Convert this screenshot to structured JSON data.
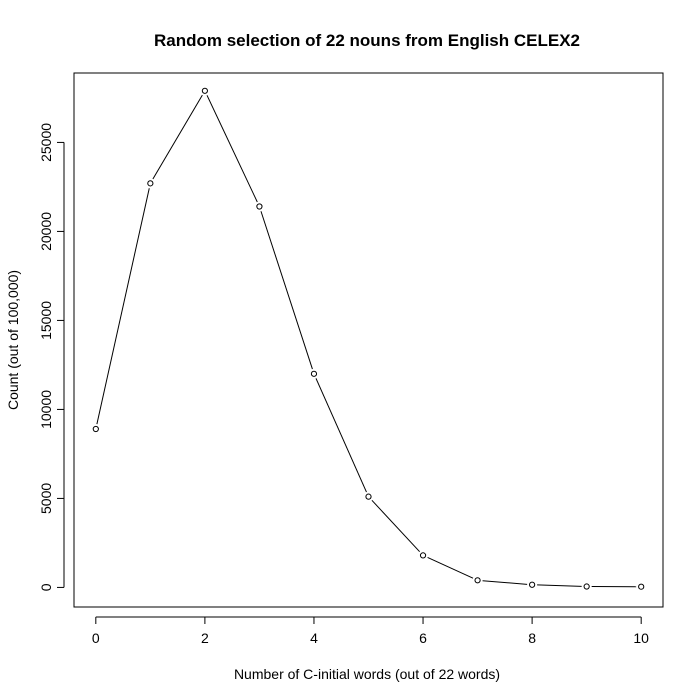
{
  "chart_data": {
    "type": "line",
    "title": "Random selection of 22 nouns from English CELEX2",
    "xlabel": "Number of C-initial words (out of 22 words)",
    "ylabel": "Count (out of 100,000)",
    "x": [
      0,
      1,
      2,
      3,
      4,
      5,
      6,
      7,
      8,
      9,
      10
    ],
    "y": [
      8900,
      22700,
      27900,
      21400,
      12000,
      5100,
      1800,
      400,
      150,
      50,
      40
    ],
    "xlim": [
      -0.4,
      10.4
    ],
    "ylim": [
      -1100,
      28900
    ],
    "x_ticks": [
      0,
      2,
      4,
      6,
      8,
      10
    ],
    "y_ticks": [
      0,
      5000,
      10000,
      15000,
      20000,
      25000
    ],
    "x_tick_labels": [
      "0",
      "2",
      "4",
      "6",
      "8",
      "10"
    ],
    "y_tick_labels": [
      "0",
      "5000",
      "10000",
      "15000",
      "20000",
      "25000"
    ],
    "markers": "open-circle",
    "grid": false,
    "line_color": "#000000"
  }
}
